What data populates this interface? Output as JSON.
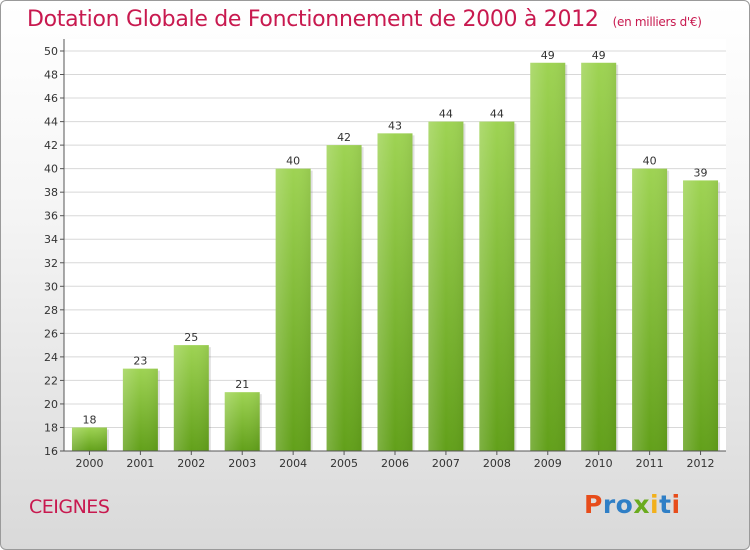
{
  "title": "Dotation Globale de Fonctionnement de 2000 à 2012",
  "subtitle": "(en milliers d'€)",
  "commune": "CEIGNES",
  "logo": {
    "p": "P",
    "r": "r",
    "o": "o",
    "x": "x",
    "i1": "i",
    "t": "t",
    "i2": "i"
  },
  "colors": {
    "title": "#c8194f",
    "bar_light": "#9ed353",
    "bar_dark": "#62a01a",
    "grid": "#d8d8d8"
  },
  "chart_data": {
    "type": "bar",
    "categories": [
      "2000",
      "2001",
      "2002",
      "2003",
      "2004",
      "2005",
      "2006",
      "2007",
      "2008",
      "2009",
      "2010",
      "2011",
      "2012"
    ],
    "values": [
      18,
      23,
      25,
      21,
      40,
      42,
      43,
      44,
      44,
      49,
      49,
      40,
      39
    ],
    "value_labels": [
      "18",
      "23",
      "25",
      "21",
      "40",
      "42",
      "43",
      "44",
      "44",
      "49",
      "49",
      "40",
      "39"
    ],
    "ylim": [
      16,
      50
    ],
    "yticks": [
      "16",
      "18",
      "20",
      "22",
      "24",
      "26",
      "28",
      "30",
      "32",
      "34",
      "36",
      "38",
      "40",
      "42",
      "44",
      "46",
      "48",
      "50"
    ],
    "grid": true
  }
}
